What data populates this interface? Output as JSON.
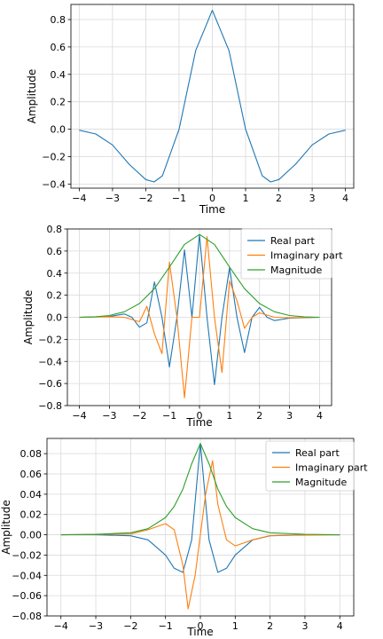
{
  "chart_data": [
    {
      "type": "line",
      "title": "",
      "xlabel": "Time",
      "ylabel": "Amplitude",
      "xlim": [
        -4.25,
        4.25
      ],
      "ylim": [
        -0.43,
        0.91
      ],
      "xticks": [
        -4,
        -3,
        -2,
        -1,
        0,
        1,
        2,
        3,
        4
      ],
      "yticks": [
        -0.4,
        -0.2,
        0.0,
        0.2,
        0.4,
        0.6,
        0.8
      ],
      "ytick_labels": [
        "−0.4",
        "−0.2",
        "0.0",
        "0.2",
        "0.4",
        "0.6",
        "0.8"
      ],
      "grid": true,
      "legend": "none",
      "series": [
        {
          "color": "#1f77b4",
          "x": [
            -4.0,
            -3.5,
            -3.0,
            -2.5,
            -2.0,
            -1.75,
            -1.5,
            -1.0,
            -0.5,
            0.0,
            0.5,
            1.0,
            1.5,
            1.75,
            2.0,
            2.5,
            3.0,
            3.5,
            4.0
          ],
          "y": [
            -0.007,
            -0.035,
            -0.115,
            -0.256,
            -0.367,
            -0.385,
            -0.34,
            0.0,
            0.573,
            0.867,
            0.573,
            0.0,
            -0.34,
            -0.385,
            -0.367,
            -0.256,
            -0.115,
            -0.035,
            -0.007
          ]
        }
      ]
    },
    {
      "type": "line",
      "title": "",
      "xlabel": "Time",
      "ylabel": "Amplitude",
      "xlim": [
        -4.4,
        4.4
      ],
      "ylim": [
        -0.8,
        0.8
      ],
      "xticks": [
        -4,
        -3,
        -2,
        -1,
        0,
        1,
        2,
        3,
        4
      ],
      "yticks": [
        -0.8,
        -0.6,
        -0.4,
        -0.2,
        0.0,
        0.2,
        0.4,
        0.6,
        0.8
      ],
      "ytick_labels": [
        "−0.8",
        "−0.6",
        "−0.4",
        "−0.2",
        "0.0",
        "0.2",
        "0.4",
        "0.6",
        "0.8"
      ],
      "grid": true,
      "legend": "top-right",
      "series": [
        {
          "name": "Real part",
          "color": "#1f77b4",
          "x": [
            -4.0,
            -3.0,
            -2.5,
            -2.25,
            -2.0,
            -1.75,
            -1.5,
            -1.25,
            -1.0,
            -0.75,
            -0.5,
            -0.25,
            0.0,
            0.25,
            0.5,
            0.75,
            1.0,
            1.25,
            1.5,
            1.75,
            2.0,
            2.25,
            2.5,
            3.0,
            4.0
          ],
          "y": [
            0.0,
            0.008,
            0.03,
            0.0,
            -0.09,
            -0.05,
            0.32,
            0.0,
            -0.45,
            0.0,
            0.61,
            0.0,
            0.75,
            0.0,
            -0.61,
            0.0,
            0.45,
            0.0,
            -0.32,
            0.0,
            0.09,
            0.0,
            -0.03,
            -0.008,
            0.0
          ]
        },
        {
          "name": "Imaginary part",
          "color": "#ff7f0e",
          "x": [
            -4.0,
            -3.0,
            -2.5,
            -2.0,
            -1.75,
            -1.5,
            -1.25,
            -1.0,
            -0.75,
            -0.5,
            -0.25,
            0.0,
            0.25,
            0.5,
            0.75,
            1.0,
            1.25,
            1.5,
            1.75,
            2.0,
            2.5,
            3.0,
            4.0
          ],
          "y": [
            0.0,
            0.005,
            0.0,
            -0.04,
            0.1,
            -0.15,
            -0.33,
            0.5,
            0.0,
            -0.73,
            0.0,
            0.0,
            0.73,
            0.0,
            -0.5,
            0.33,
            0.15,
            -0.1,
            0.0,
            0.04,
            0.0,
            -0.005,
            0.0
          ]
        },
        {
          "name": "Magnitude",
          "color": "#2ca02c",
          "x": [
            -4.0,
            -3.5,
            -3.0,
            -2.5,
            -2.0,
            -1.5,
            -1.0,
            -0.5,
            0.0,
            0.5,
            1.0,
            1.5,
            2.0,
            2.5,
            3.0,
            3.5,
            4.0
          ],
          "y": [
            0.0,
            0.003,
            0.016,
            0.05,
            0.125,
            0.26,
            0.455,
            0.66,
            0.75,
            0.66,
            0.455,
            0.26,
            0.125,
            0.05,
            0.016,
            0.003,
            0.0
          ]
        }
      ]
    },
    {
      "type": "line",
      "title": "",
      "xlabel": "Time",
      "ylabel": "Amplitude",
      "xlim": [
        -4.4,
        4.4
      ],
      "ylim": [
        -0.08,
        0.095
      ],
      "xticks": [
        -4,
        -3,
        -2,
        -1,
        0,
        1,
        2,
        3,
        4
      ],
      "yticks": [
        -0.08,
        -0.06,
        -0.04,
        -0.02,
        0.0,
        0.02,
        0.04,
        0.06,
        0.08
      ],
      "ytick_labels": [
        "−0.08",
        "−0.06",
        "−0.04",
        "−0.02",
        "0.00",
        "0.02",
        "0.04",
        "0.06",
        "0.08"
      ],
      "grid": true,
      "legend": "top-right",
      "series": [
        {
          "name": "Real part",
          "color": "#1f77b4",
          "x": [
            -4.0,
            -3.0,
            -2.0,
            -1.5,
            -1.0,
            -0.75,
            -0.5,
            -0.25,
            0.0,
            0.25,
            0.5,
            0.75,
            1.0,
            1.5,
            2.0,
            3.0,
            4.0
          ],
          "y": [
            0.0,
            0.0,
            -0.001,
            -0.005,
            -0.02,
            -0.033,
            -0.037,
            -0.005,
            0.09,
            -0.005,
            -0.037,
            -0.033,
            -0.02,
            -0.005,
            -0.001,
            0.0,
            0.0
          ]
        },
        {
          "name": "Imaginary part",
          "color": "#ff7f0e",
          "x": [
            -4.0,
            -2.0,
            -1.5,
            -1.0,
            -0.75,
            -0.5,
            -0.35,
            -0.15,
            0.0,
            0.15,
            0.35,
            0.5,
            0.75,
            1.0,
            1.5,
            2.0,
            4.0
          ],
          "y": [
            0.0,
            0.0008,
            0.005,
            0.011,
            0.005,
            -0.03,
            -0.073,
            -0.04,
            0.0,
            0.04,
            0.073,
            0.03,
            -0.005,
            -0.011,
            -0.005,
            -0.0008,
            0.0
          ]
        },
        {
          "name": "Magnitude",
          "color": "#2ca02c",
          "x": [
            -4.0,
            -3.0,
            -2.0,
            -1.5,
            -1.0,
            -0.75,
            -0.5,
            -0.25,
            0.0,
            0.25,
            0.5,
            0.75,
            1.0,
            1.5,
            2.0,
            3.0,
            4.0
          ],
          "y": [
            0.0,
            0.0005,
            0.002,
            0.006,
            0.017,
            0.028,
            0.045,
            0.07,
            0.09,
            0.07,
            0.045,
            0.028,
            0.017,
            0.006,
            0.002,
            0.0005,
            0.0
          ]
        }
      ]
    }
  ]
}
